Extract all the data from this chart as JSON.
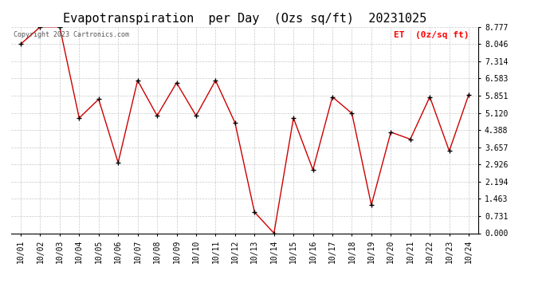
{
  "title": "Evapotranspiration  per Day  (Ozs sq/ft)  20231025",
  "legend_label": "ET  (0z/sq ft)",
  "copyright_text": "Copyright 2023 Cartronics.com",
  "x_labels": [
    "10/01",
    "10/02",
    "10/03",
    "10/04",
    "10/05",
    "10/06",
    "10/07",
    "10/08",
    "10/09",
    "10/10",
    "10/11",
    "10/12",
    "10/13",
    "10/14",
    "10/15",
    "10/16",
    "10/17",
    "10/18",
    "10/19",
    "10/20",
    "10/21",
    "10/22",
    "10/23",
    "10/24"
  ],
  "y_values": [
    8.046,
    8.777,
    8.777,
    4.9,
    5.7,
    3.0,
    6.5,
    5.0,
    6.4,
    5.0,
    6.5,
    4.7,
    0.9,
    0.0,
    4.9,
    2.7,
    5.8,
    5.1,
    1.2,
    4.3,
    4.0,
    5.8,
    3.5,
    5.9
  ],
  "line_color": "#cc0000",
  "marker_color": "#000000",
  "background_color": "#ffffff",
  "grid_color": "#c8c8c8",
  "ylim": [
    0.0,
    8.777
  ],
  "yticks": [
    0.0,
    0.731,
    1.463,
    2.194,
    2.926,
    3.657,
    4.388,
    5.12,
    5.851,
    6.583,
    7.314,
    8.046,
    8.777
  ],
  "title_fontsize": 11,
  "legend_fontsize": 8,
  "copyright_fontsize": 6,
  "tick_fontsize": 7
}
